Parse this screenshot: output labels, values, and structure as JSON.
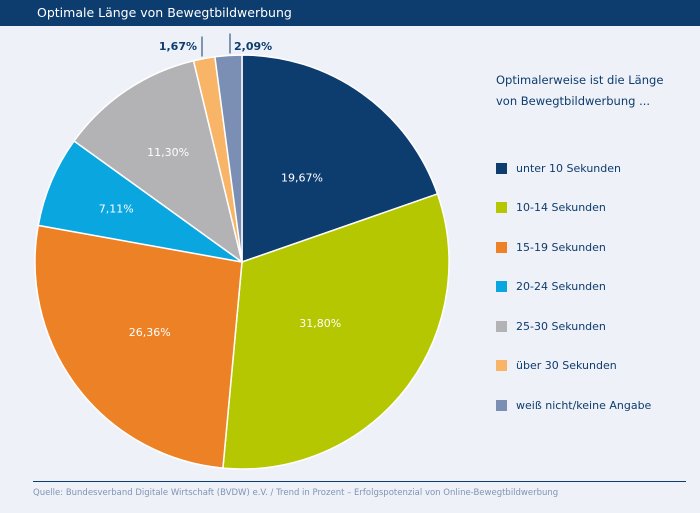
{
  "header": {
    "title": "Optimale Länge von Bewegtbildwerbung"
  },
  "legend": {
    "heading_line1": "Optimalerweise ist die Länge",
    "heading_line2": "von Bewegtbildwerbung ..."
  },
  "chart_data": {
    "type": "pie",
    "title": "Optimale Länge von Bewegtbildwerbung",
    "categories": [
      "unter 10 Sekunden",
      "10-14 Sekunden",
      "15-19 Sekunden",
      "20-24 Sekunden",
      "25-30 Sekunden",
      "über 30 Sekunden",
      "weiß nicht/keine Angabe"
    ],
    "values": [
      19.67,
      31.8,
      26.36,
      7.11,
      11.3,
      1.67,
      2.09
    ],
    "labels": [
      "19,67%",
      "31,80%",
      "26,36%",
      "7,11%",
      "11,30%",
      "1,67%",
      "2,09%"
    ],
    "colors": [
      "#0d3c6e",
      "#b5c700",
      "#ed8126",
      "#0aa6df",
      "#b3b3b5",
      "#f9b567",
      "#7b8fb5"
    ],
    "unit": "%",
    "legend_position": "right"
  },
  "footer": {
    "source": "Quelle: Bundesverband Digitale Wirtschaft (BVDW) e.V. / Trend in Prozent – Erfolgspotenzial von Online-Bewegtbildwerbung"
  }
}
